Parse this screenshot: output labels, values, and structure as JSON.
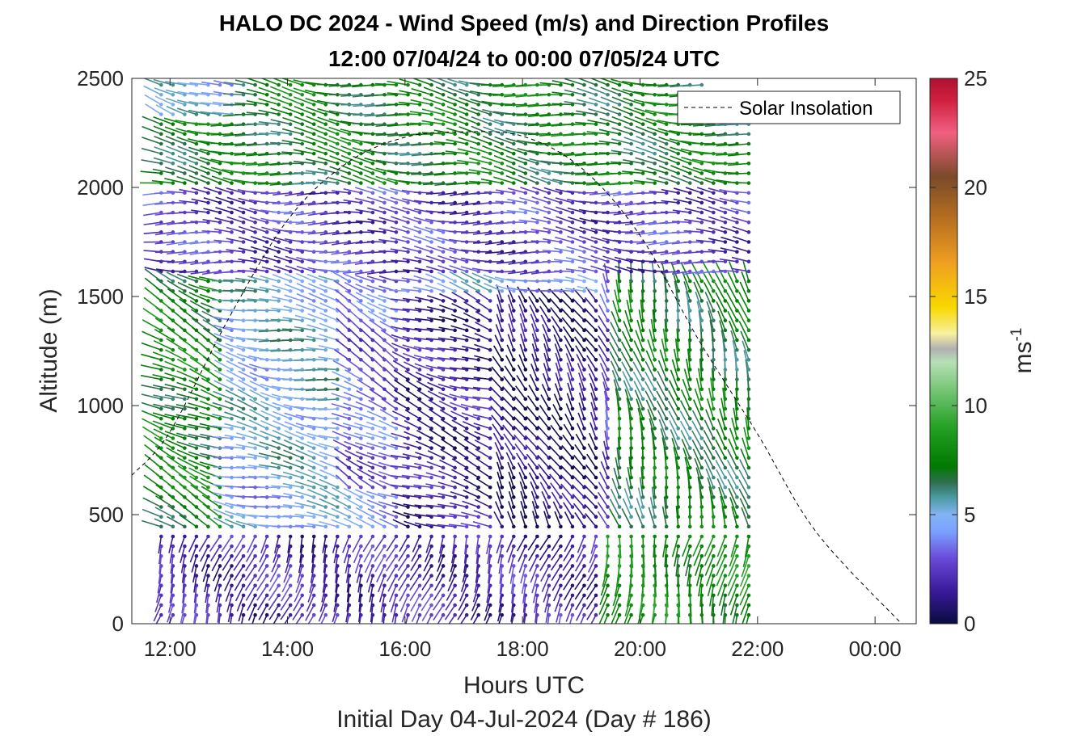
{
  "chart_data": {
    "type": "wind-barb-profile",
    "title": "HALO DC 2024 - Wind Speed (m/s) and Direction Profiles",
    "subtitle": "12:00 07/04/24 to 00:00 07/05/24  UTC",
    "xlabel": "Hours UTC",
    "xlabel2": "Initial Day 04-Jul-2024 (Day # 186)",
    "ylabel": "Altitude (m)",
    "colorbar_label": "ms",
    "colorbar_label_exp": "-1",
    "xlim": [
      11.35,
      24.7
    ],
    "ylim": [
      0,
      2500
    ],
    "x_ticks": [
      12,
      14,
      16,
      18,
      20,
      22,
      24
    ],
    "x_tick_labels": [
      "12:00",
      "14:00",
      "16:00",
      "18:00",
      "20:00",
      "22:00",
      "00:00"
    ],
    "y_ticks": [
      0,
      500,
      1000,
      1500,
      2000,
      2500
    ],
    "y_tick_labels": [
      "0",
      "500",
      "1000",
      "1500",
      "2000",
      "2500"
    ],
    "colorbar_range": [
      0,
      25
    ],
    "colorbar_ticks": [
      0,
      5,
      10,
      15,
      20,
      25
    ],
    "colorbar_tick_labels": [
      "0",
      "5",
      "10",
      "15",
      "20",
      "25"
    ],
    "colormap_stops": [
      {
        "v": 0,
        "c": "#0b0b3f"
      },
      {
        "v": 1.5,
        "c": "#3a1a9a"
      },
      {
        "v": 3,
        "c": "#6a4ad8"
      },
      {
        "v": 4.2,
        "c": "#7aa0ff"
      },
      {
        "v": 5,
        "c": "#84b4f4"
      },
      {
        "v": 5.8,
        "c": "#4a9aa0"
      },
      {
        "v": 6.5,
        "c": "#2f6e4e"
      },
      {
        "v": 7.2,
        "c": "#007a00"
      },
      {
        "v": 9,
        "c": "#24a024"
      },
      {
        "v": 10.5,
        "c": "#6cc06c"
      },
      {
        "v": 12,
        "c": "#b6e0b6"
      },
      {
        "v": 12.6,
        "c": "#b0b0b0"
      },
      {
        "v": 13.3,
        "c": "#f8f0a0"
      },
      {
        "v": 14.5,
        "c": "#f8d800"
      },
      {
        "v": 16.5,
        "c": "#f0a020"
      },
      {
        "v": 18.5,
        "c": "#b87020"
      },
      {
        "v": 20.5,
        "c": "#7a4a2a"
      },
      {
        "v": 22.5,
        "c": "#f06080"
      },
      {
        "v": 24,
        "c": "#d02040"
      },
      {
        "v": 25,
        "c": "#b01030"
      }
    ],
    "legend": {
      "entries": [
        "Solar Insolation"
      ],
      "placement": "top-right"
    },
    "solar_insolation": {
      "style": "dashed-black",
      "x": [
        11.35,
        12,
        13,
        14,
        15,
        16,
        17,
        18,
        19,
        20,
        21,
        22,
        23,
        24.45
      ],
      "y": [
        680,
        880,
        1400,
        1850,
        2110,
        2230,
        2255,
        2235,
        2090,
        1780,
        1300,
        870,
        420,
        0
      ]
    },
    "barb_grid": {
      "x_start": 11.85,
      "x_end": 21.85,
      "x_step": 0.2,
      "y_start": 40,
      "y_end": 2470,
      "y_step": 45
    },
    "wind_regimes": [
      {
        "x": [
          11.8,
          13.0
        ],
        "y": [
          300,
          2470
        ],
        "speed": 7.5,
        "dir": 295
      },
      {
        "x": [
          13.0,
          13.8
        ],
        "y": [
          800,
          2000
        ],
        "speed": 5.0,
        "dir": 285
      },
      {
        "x": [
          13.8,
          15.0
        ],
        "y": [
          600,
          1800
        ],
        "speed": 5.2,
        "dir": 280
      },
      {
        "x": [
          15.0,
          16.0
        ],
        "y": [
          600,
          1600
        ],
        "speed": 3.2,
        "dir": 300
      },
      {
        "x": [
          16.0,
          17.5
        ],
        "y": [
          400,
          1500
        ],
        "speed": 1.6,
        "dir": 290
      },
      {
        "x": [
          17.5,
          19.3
        ],
        "y": [
          400,
          1500
        ],
        "speed": 0.8,
        "dir": 330
      },
      {
        "x": [
          19.3,
          21.0
        ],
        "y": [
          400,
          1800
        ],
        "speed": 2.6,
        "dir": 340
      },
      {
        "x": [
          19.6,
          21.85
        ],
        "y": [
          300,
          2200
        ],
        "speed": 7.0,
        "dir": 345
      },
      {
        "x": [
          11.8,
          21.85
        ],
        "y": [
          1600,
          2000
        ],
        "speed": 2.5,
        "dir": 275
      },
      {
        "x": [
          11.8,
          21.85
        ],
        "y": [
          2000,
          2470
        ],
        "speed": 7.2,
        "dir": 278
      },
      {
        "x": [
          11.8,
          19.3
        ],
        "y": [
          0,
          400
        ],
        "speed": 2.0,
        "dir": 200
      },
      {
        "x": [
          19.3,
          21.85
        ],
        "y": [
          0,
          400
        ],
        "speed": 8.0,
        "dir": 190
      },
      {
        "x": [
          11.8,
          13.2
        ],
        "y": [
          2300,
          2470
        ],
        "speed": 5.0,
        "dir": 290
      }
    ]
  }
}
